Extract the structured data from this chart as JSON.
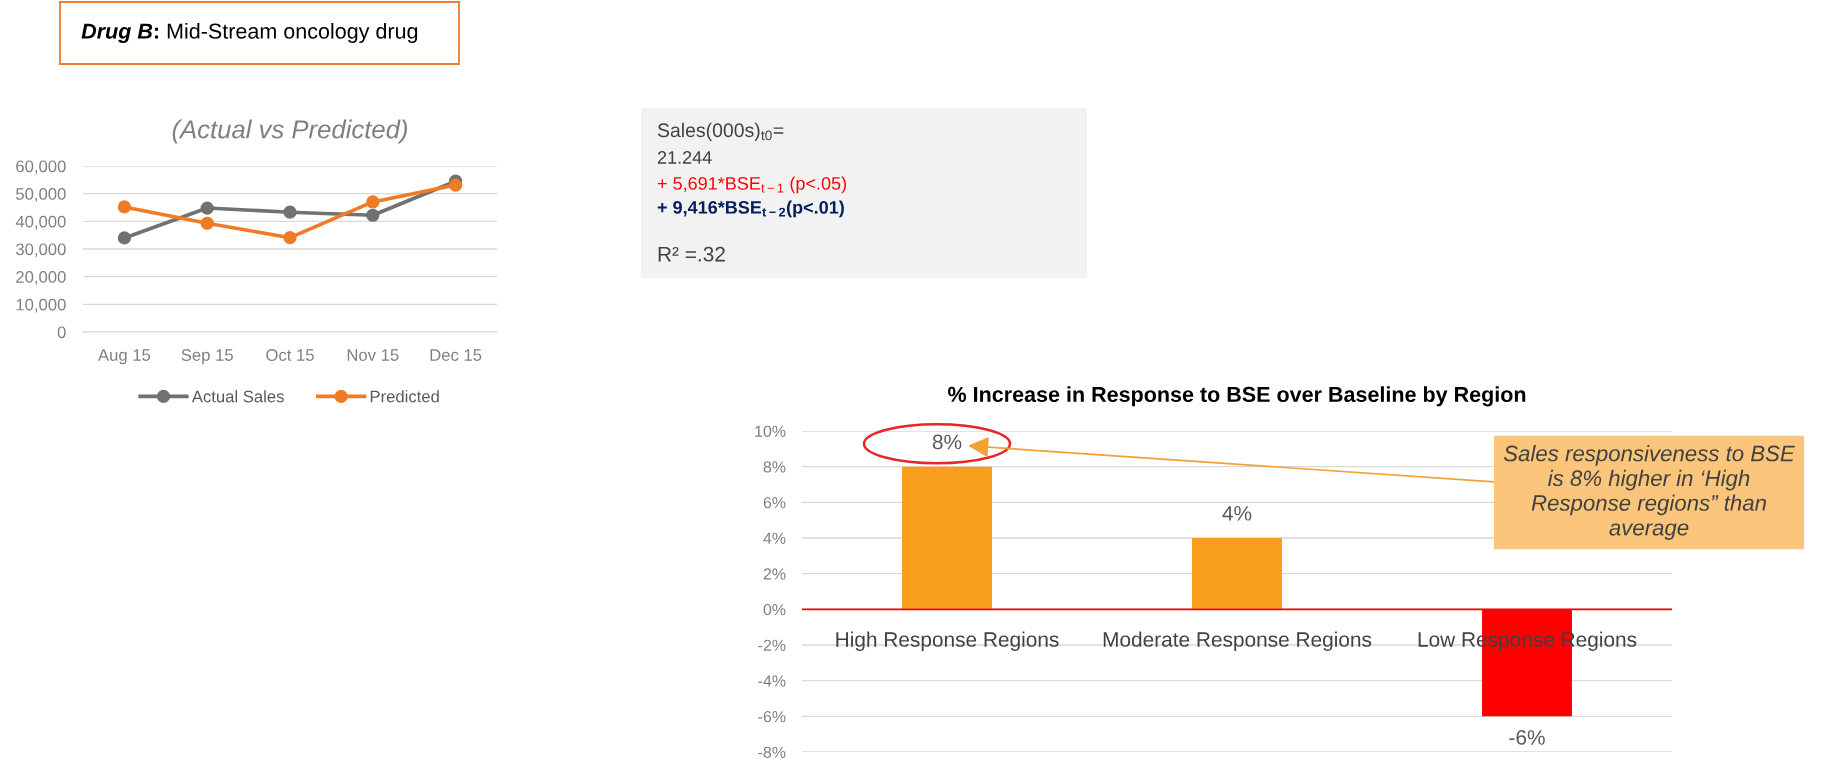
{
  "chart_data": [
    {
      "type": "other",
      "title": "Drug B: Mid-Stream oncology drug"
    },
    {
      "type": "line",
      "title": "(Actual vs Predicted)",
      "categories": [
        "Aug 15",
        "Sep 15",
        "Oct 15",
        "Nov 15",
        "Dec 15"
      ],
      "series": [
        {
          "name": "Actual Sales",
          "color": "#717171",
          "values": [
            34000,
            44800,
            43300,
            42200,
            54500
          ]
        },
        {
          "name": "Predicted",
          "color": "#f07b27",
          "values": [
            45200,
            39300,
            34100,
            47000,
            53100
          ]
        }
      ],
      "ylim": [
        0,
        60000
      ],
      "yticks": [
        0,
        {
          "value": 10000,
          "label": "10,000"
        },
        {
          "value": 20000,
          "label": "20,000"
        },
        {
          "value": 30000,
          "label": "30,000"
        },
        {
          "value": 40000,
          "label": "40,000"
        },
        {
          "value": 50000,
          "label": "50,000"
        },
        {
          "value": 60000,
          "label": "60,000"
        }
      ],
      "grid": "y",
      "legend": "bottom",
      "marker": "circle",
      "line_style": "solid"
    },
    {
      "type": "other",
      "annotations": [
        "Sales(000s)$_{t0}$=",
        "21.244",
        "+ 5,691*BSE$_{t−1}$ (p<.05)",
        "+ 9,416*BSE$_{t−2}$(p<.01)",
        "R² =.32"
      ]
    },
    {
      "type": "bar",
      "title": "% Increase in Response to BSE over Baseline by Region",
      "categories": [
        "High Response Regions",
        "Moderate Response Regions",
        "Low Response Regions"
      ],
      "values": [
        8,
        4,
        -6
      ],
      "colors": [
        "#f99d1c",
        "#f99d1c",
        "#ff0000"
      ],
      "value_labels": [
        "8%",
        "4%",
        "-6%"
      ],
      "ylim": [
        -8,
        10
      ],
      "yticks": [
        {
          "value": -8,
          "label": "-8%"
        },
        {
          "value": -6,
          "label": "-6%"
        },
        {
          "value": -4,
          "label": "-4%"
        },
        {
          "value": -2,
          "label": "-2%"
        },
        {
          "value": 0,
          "label": "0%"
        },
        {
          "value": 2,
          "label": "2%"
        },
        {
          "value": 4,
          "label": "4%"
        },
        {
          "value": 6,
          "label": "6%"
        },
        {
          "value": 8,
          "label": "8%"
        },
        {
          "value": 10,
          "label": "10%"
        }
      ],
      "grid": "y",
      "ref_lines": [
        {
          "axis": "y",
          "value": 0,
          "color": "#ff0000"
        }
      ],
      "annotations": [
        "Sales responsiveness to BSE is 8% higher in ‘High Response regions” than average"
      ]
    }
  ]
}
